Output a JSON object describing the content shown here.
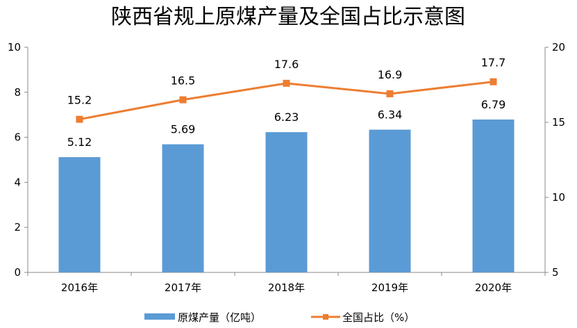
{
  "chart_data": {
    "type": "bar+line",
    "title": "陕西省规上原煤产量及全国占比示意图",
    "categories": [
      "2016年",
      "2017年",
      "2018年",
      "2019年",
      "2020年"
    ],
    "series": [
      {
        "name": "原煤产量（亿吨）",
        "type": "bar",
        "axis": "left",
        "values": [
          5.12,
          5.69,
          6.23,
          6.34,
          6.79
        ],
        "labels": [
          "5.12",
          "5.69",
          "6.23",
          "6.34",
          "6.79"
        ]
      },
      {
        "name": "全国占比（%）",
        "type": "line",
        "axis": "right",
        "values": [
          15.2,
          16.5,
          17.6,
          16.9,
          17.7
        ],
        "labels": [
          "15.2",
          "16.5",
          "17.6",
          "16.9",
          "17.7"
        ]
      }
    ],
    "left_axis": {
      "ylim": [
        0,
        10
      ],
      "ticks": [
        "0",
        "2",
        "4",
        "6",
        "8",
        "10"
      ]
    },
    "right_axis": {
      "ylim": [
        5,
        20
      ],
      "ticks": [
        "5",
        "10",
        "15",
        "20"
      ]
    },
    "grid": false,
    "legend": "bottom",
    "colors": {
      "bar": "#5B9BD5",
      "line": "#ED7D31"
    }
  }
}
